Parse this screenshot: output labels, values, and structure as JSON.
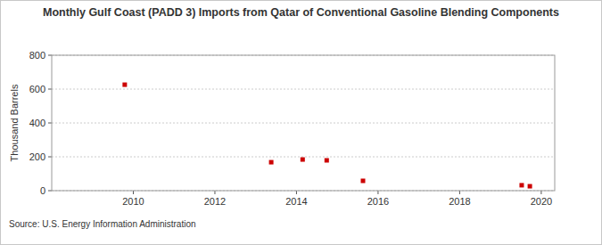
{
  "chart_data": {
    "type": "scatter",
    "title": "Monthly Gulf Coast (PADD 3) Imports from Qatar of Conventional Gasoline Blending Components",
    "y_label": "Thousand Barrels",
    "source": "Source: U.S. Energy Information Administration",
    "x": [
      2009.79,
      2013.38,
      2014.15,
      2014.74,
      2015.63,
      2019.52,
      2019.72
    ],
    "values": [
      626,
      168,
      184,
      179,
      58,
      32,
      26
    ],
    "color": "#cc0000",
    "marker": "square",
    "xlim": [
      2008.0,
      2020.33
    ],
    "xticks": [
      2010,
      2012,
      2014,
      2016,
      2018,
      2020
    ],
    "ylim": [
      0,
      800
    ],
    "yticks": [
      0,
      200,
      400,
      600,
      800
    ],
    "grid": true
  }
}
